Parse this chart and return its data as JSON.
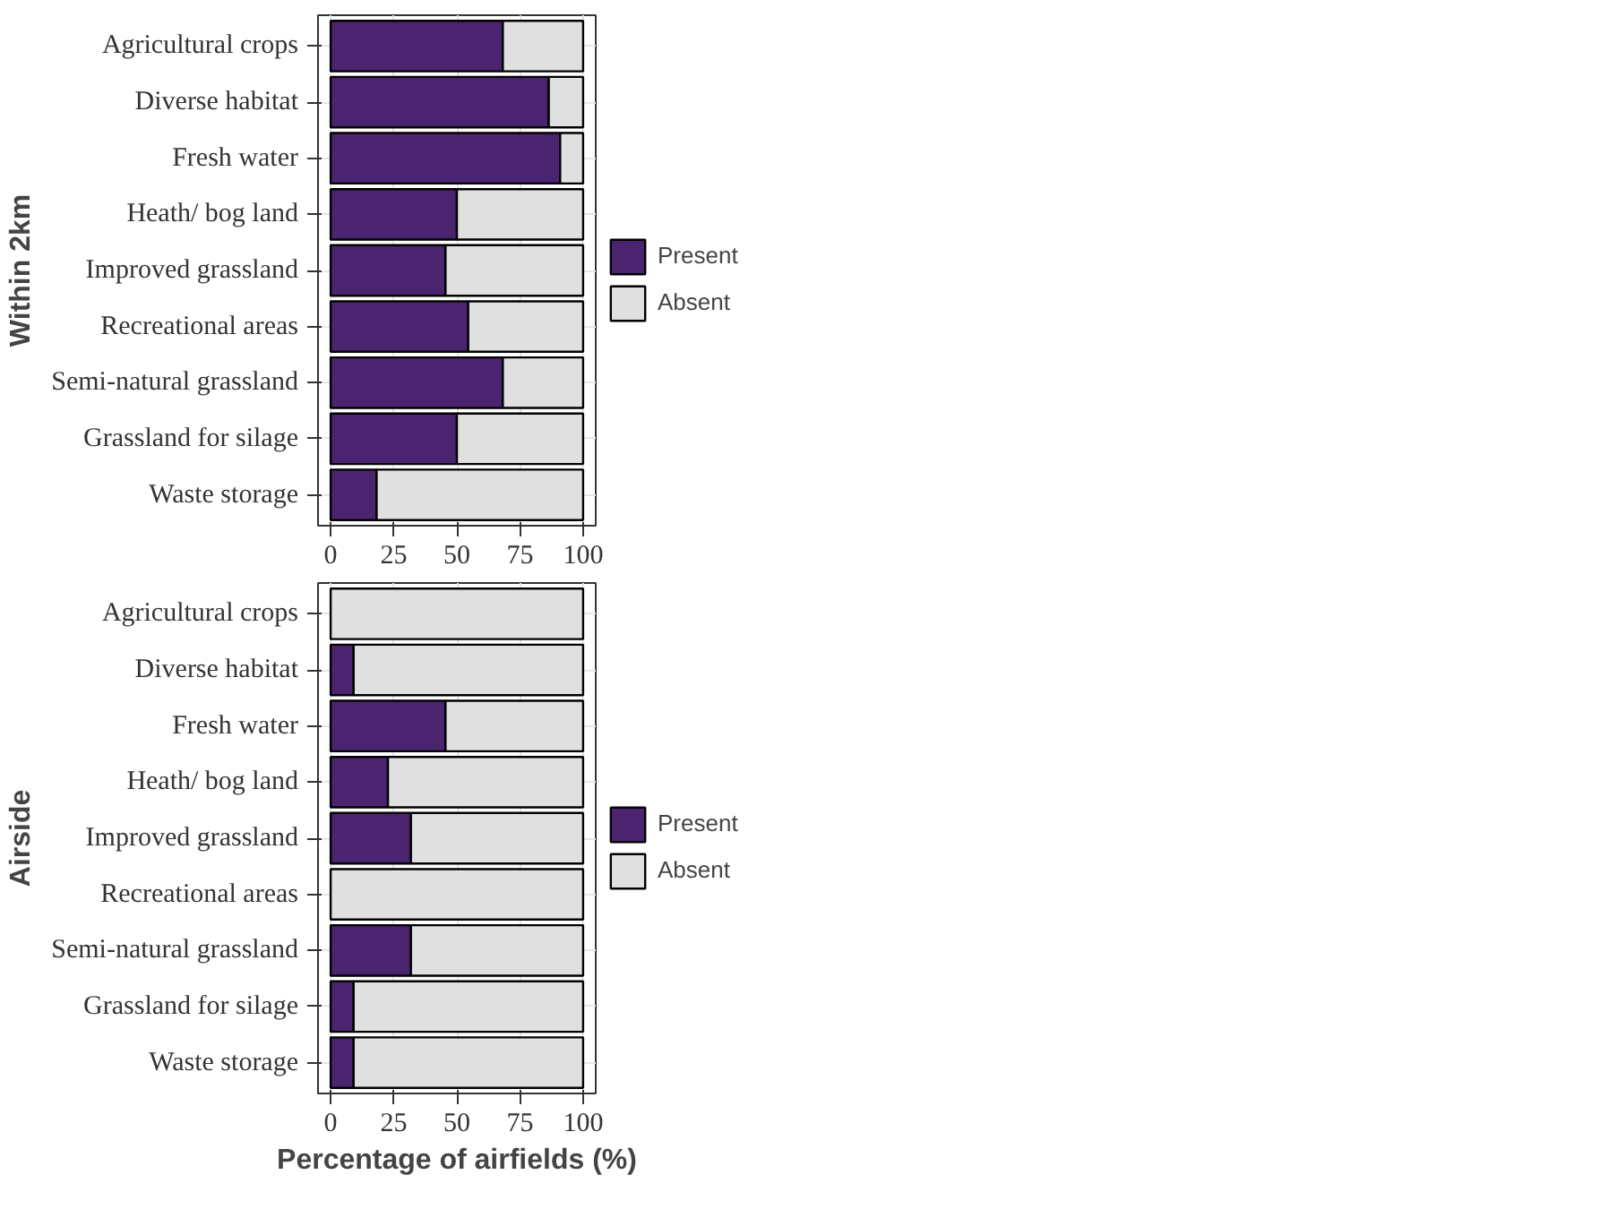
{
  "chart_data": [
    {
      "type": "bar",
      "orientation": "horizontal",
      "stacked": true,
      "ylabel": "Within 2km",
      "categories": [
        "Agricultural crops",
        "Diverse habitat",
        "Fresh water",
        "Heath/ bog land",
        "Improved grassland",
        "Recreational areas",
        "Semi-natural grassland",
        "Grassland for silage",
        "Waste storage"
      ],
      "series": [
        {
          "name": "Present",
          "color": "#4b2470",
          "values": [
            68.2,
            86.4,
            90.9,
            50,
            45.5,
            54.5,
            68.2,
            50,
            18.2
          ]
        },
        {
          "name": "Absent",
          "color": "#e0e0e0",
          "values": [
            31.8,
            13.6,
            9.1,
            50,
            54.5,
            45.5,
            31.8,
            50,
            81.8
          ]
        }
      ],
      "xlim": [
        -5,
        105
      ],
      "xticks": [
        0,
        25,
        50,
        75,
        100
      ],
      "grid": true,
      "legend": "right"
    },
    {
      "type": "bar",
      "orientation": "horizontal",
      "stacked": true,
      "ylabel": "Airside",
      "xlabel": "Percentage of airfields (%)",
      "categories": [
        "Agricultural crops",
        "Diverse habitat",
        "Fresh water",
        "Heath/ bog land",
        "Improved grassland",
        "Recreational areas",
        "Semi-natural grassland",
        "Grassland for silage",
        "Waste storage"
      ],
      "series": [
        {
          "name": "Present",
          "color": "#4b2470",
          "values": [
            0,
            9.1,
            45.5,
            22.7,
            31.8,
            0,
            31.8,
            9.1,
            9.1
          ]
        },
        {
          "name": "Absent",
          "color": "#e0e0e0",
          "values": [
            100,
            90.9,
            54.5,
            77.3,
            68.2,
            100,
            68.2,
            90.9,
            90.9
          ]
        }
      ],
      "xlim": [
        -5,
        105
      ],
      "xticks": [
        0,
        25,
        50,
        75,
        100
      ],
      "grid": true,
      "legend": "right"
    }
  ]
}
